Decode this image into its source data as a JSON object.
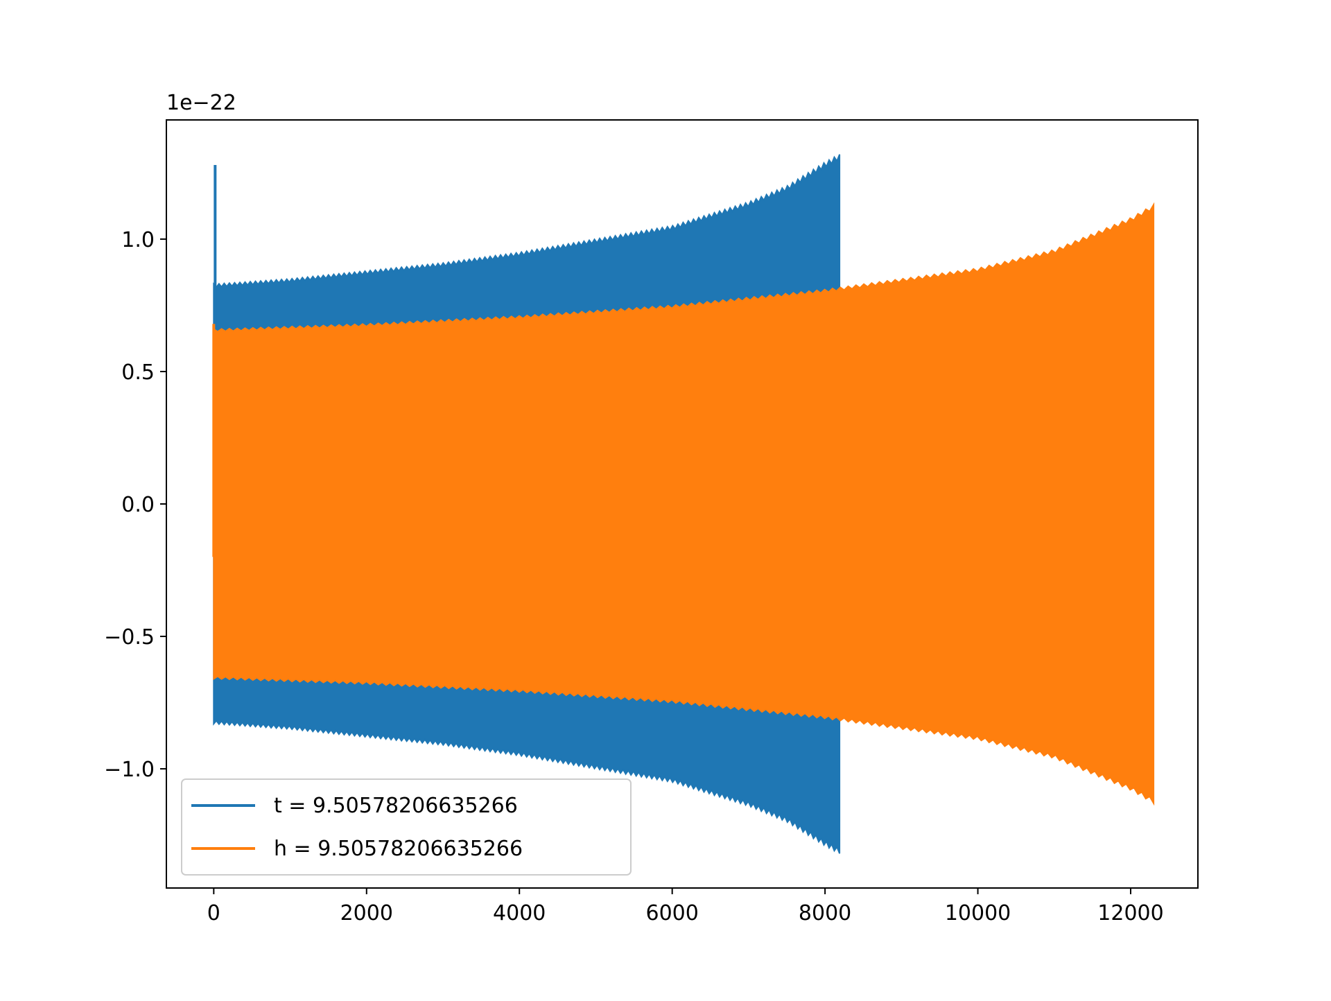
{
  "chart_data": {
    "type": "line",
    "title": "",
    "xlabel": "",
    "ylabel": "",
    "offset_text": "1e−22",
    "xlim": [
      -620,
      12880
    ],
    "ylim": [
      -1.45,
      1.45
    ],
    "x_ticks": [
      0,
      2000,
      4000,
      6000,
      8000,
      10000,
      12000
    ],
    "x_tick_labels": [
      "0",
      "2000",
      "4000",
      "6000",
      "8000",
      "10000",
      "12000"
    ],
    "y_ticks": [
      -1.0,
      -0.5,
      0.0,
      0.5,
      1.0
    ],
    "y_tick_labels": [
      "−1.0",
      "−0.5",
      "0.0",
      "0.5",
      "1.0"
    ],
    "grid": false,
    "legend_position": "lower-left",
    "series": [
      {
        "name": "t = 9.50578206635266",
        "color": "#1f77b4",
        "x_start": 0,
        "x_end": 8190,
        "initial_spike": 1.28,
        "envelope_x": [
          0,
          1000,
          2000,
          3000,
          4000,
          5000,
          6000,
          7000,
          7500,
          8000,
          8190
        ],
        "envelope_y": [
          0.83,
          0.85,
          0.88,
          0.91,
          0.95,
          1.0,
          1.05,
          1.14,
          1.2,
          1.29,
          1.32
        ]
      },
      {
        "name": "h = 9.50578206635266",
        "color": "#ff7f0e",
        "x_start": 0,
        "x_end": 12300,
        "initial_spike": 0.68,
        "envelope_x": [
          0,
          2000,
          4000,
          6000,
          8000,
          10000,
          11000,
          12000,
          12300
        ],
        "envelope_y": [
          0.66,
          0.68,
          0.71,
          0.75,
          0.81,
          0.89,
          0.96,
          1.08,
          1.13
        ]
      }
    ]
  }
}
